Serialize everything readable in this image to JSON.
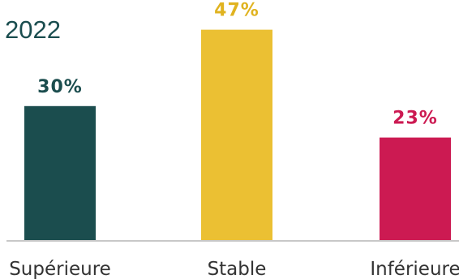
{
  "chart_data": {
    "type": "bar",
    "title": "2022",
    "categories": [
      "Supérieure",
      "Stable",
      "Inférieure"
    ],
    "values": [
      30,
      47,
      23
    ],
    "value_labels": [
      "30%",
      "47%",
      "23%"
    ],
    "colors": [
      "#1b4d4e",
      "#ebc033",
      "#cc1a52"
    ],
    "label_colors": [
      "#1b4d4e",
      "#e0b320",
      "#cc1a52"
    ],
    "ylim": [
      0,
      50
    ],
    "grid": false,
    "legend": "none",
    "xlabel": "",
    "ylabel": ""
  }
}
